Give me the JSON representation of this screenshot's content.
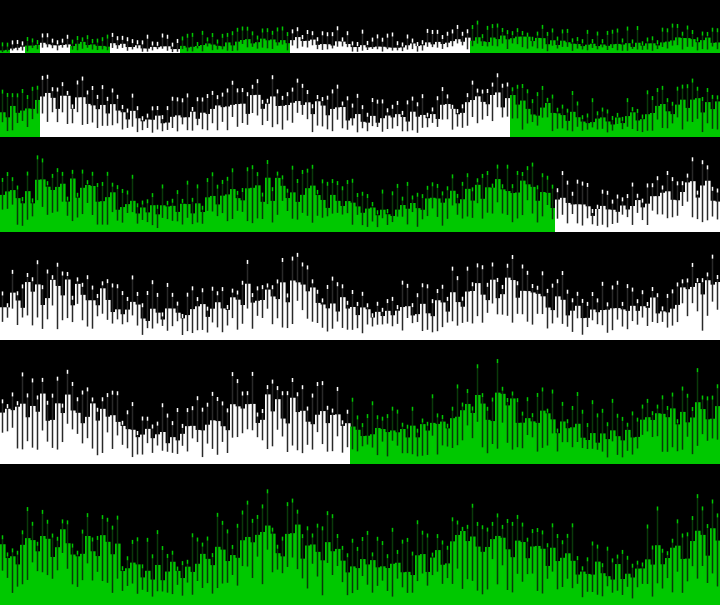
{
  "colors": {
    "background": "#000000",
    "green": "#00c800",
    "white": "#ffffff",
    "line": "#333333"
  },
  "rows": [
    {
      "segments": [
        {
          "color": "green",
          "columns": 2
        },
        {
          "color": "white",
          "columns": 3
        },
        {
          "color": "green",
          "columns": 3
        },
        {
          "color": "white",
          "columns": 6
        },
        {
          "color": "green",
          "columns": 8
        },
        {
          "color": "white",
          "columns": 14
        },
        {
          "color": "green",
          "columns": 22
        },
        {
          "color": "white",
          "columns": 36
        },
        {
          "color": "green",
          "columns": 50
        }
      ],
      "level": 0.35
    },
    {
      "segments": [
        {
          "color": "green",
          "columns": 8
        },
        {
          "color": "white",
          "columns": 94
        },
        {
          "color": "green",
          "columns": 42
        }
      ],
      "level": 0.55
    },
    {
      "segments": [
        {
          "color": "green",
          "columns": 111
        },
        {
          "color": "white",
          "columns": 33
        }
      ],
      "level": 0.6
    },
    {
      "segments": [
        {
          "color": "white",
          "columns": 144
        }
      ],
      "level": 0.6
    },
    {
      "segments": [
        {
          "color": "white",
          "columns": 70
        },
        {
          "color": "green",
          "columns": 74
        }
      ],
      "level": 0.6
    },
    {
      "segments": [
        {
          "color": "green",
          "columns": 144
        }
      ],
      "level": 0.62
    }
  ]
}
